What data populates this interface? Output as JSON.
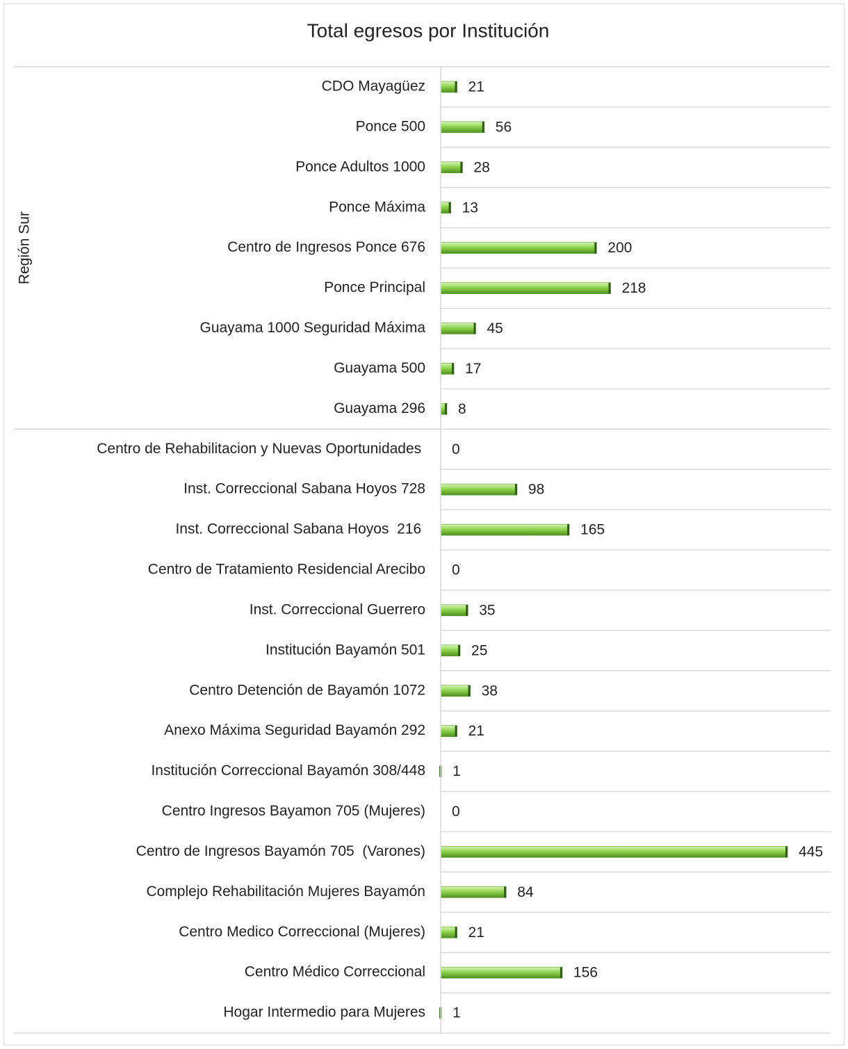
{
  "chart_data": {
    "type": "bar",
    "orientation": "horizontal",
    "title": "Total egresos por Institución",
    "color": "#8fd44f",
    "groups": [
      {
        "name": "Región Sur",
        "categories": [
          "CDO Mayagüez",
          "Ponce 500",
          "Ponce Adultos 1000",
          "Ponce Máxima",
          "Centro de Ingresos Ponce 676",
          "Ponce Principal",
          "Guayama 1000 Seguridad Máxima",
          "Guayama 500",
          "Guayama 296"
        ],
        "values": [
          21,
          56,
          28,
          13,
          200,
          218,
          45,
          17,
          8
        ]
      },
      {
        "name": null,
        "categories": [
          "Centro de Rehabilitacion y Nuevas Oportunidades ",
          "Inst. Correccional Sabana Hoyos 728",
          "Inst. Correccional Sabana Hoyos  216 ",
          "Centro de Tratamiento Residencial Arecibo",
          "Inst. Correccional Guerrero",
          "Institución Bayamón 501",
          "Centro Detención de Bayamón 1072",
          "Anexo Máxima Seguridad Bayamón 292",
          "Institución Correccional Bayamón 308/448",
          "Centro Ingresos Bayamon 705 (Mujeres)",
          "Centro de Ingresos Bayamón 705  (Varones)",
          "Complejo Rehabilitación Mujeres Bayamón",
          "Centro Medico Correccional (Mujeres)",
          "Centro Médico Correccional",
          "Hogar Intermedio para Mujeres"
        ],
        "values": [
          0,
          98,
          165,
          0,
          35,
          25,
          38,
          21,
          1,
          0,
          445,
          84,
          21,
          156,
          1
        ]
      }
    ]
  }
}
